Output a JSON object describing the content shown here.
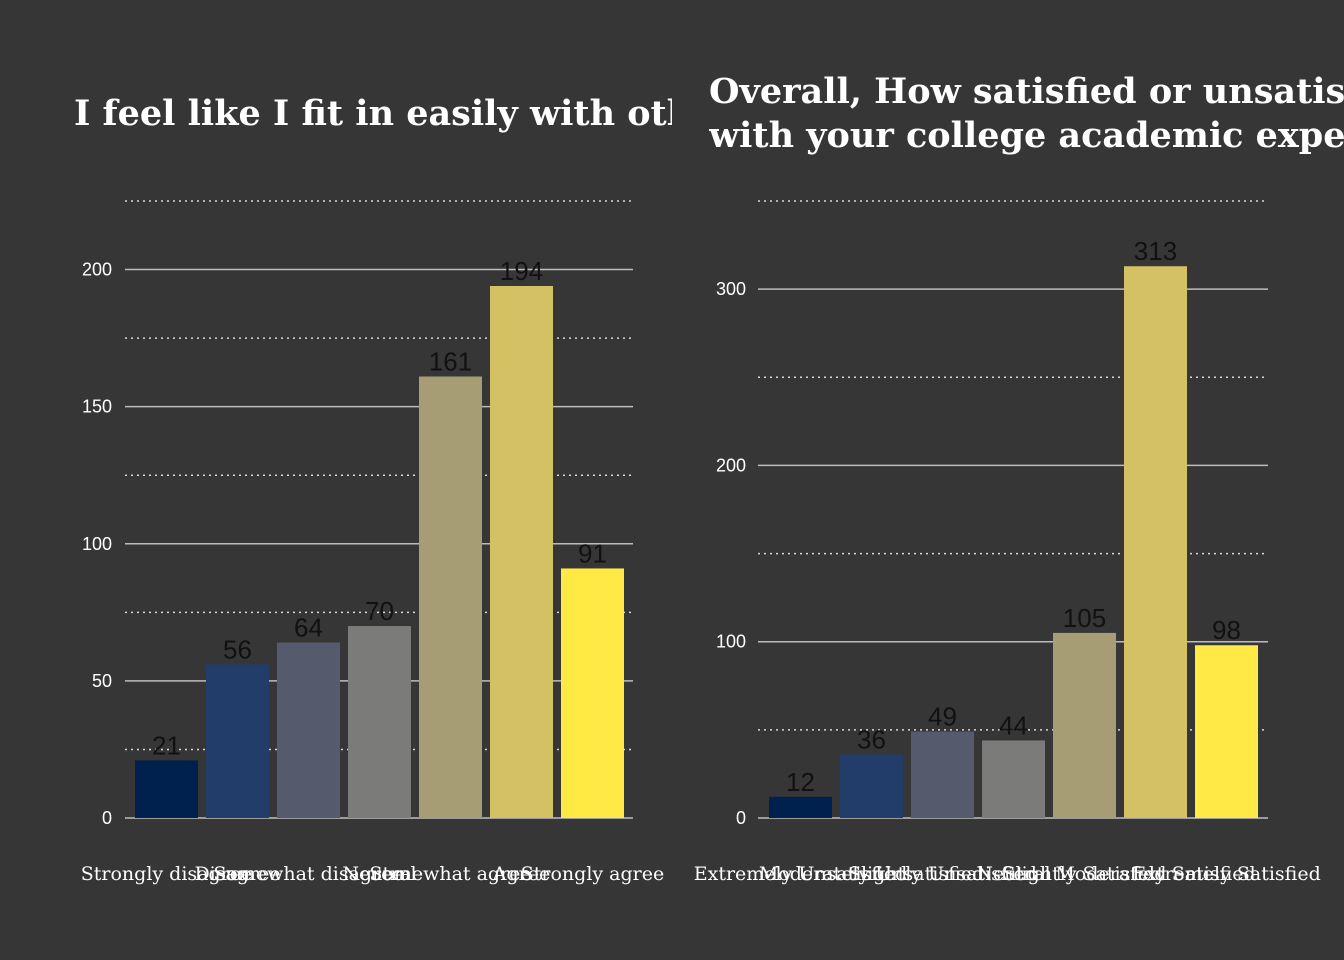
{
  "chart_data": [
    {
      "type": "bar",
      "title": "I feel like I fit in easily with oth",
      "categories": [
        "Strongly disagree",
        "Disagree",
        "Somewhat disagree",
        "Neutral",
        "Somewhat agree",
        "Agree",
        "Strongly agree"
      ],
      "values": [
        21,
        56,
        64,
        70,
        161,
        194,
        91
      ],
      "colors": [
        "#00204D",
        "#233D6B",
        "#555B6C",
        "#7B7B79",
        "#A69D75",
        "#D3C164",
        "#FFE945"
      ],
      "xlabel": "",
      "ylabel": "",
      "ylim": [
        0,
        225
      ],
      "yticks": [
        0,
        50,
        100,
        150,
        200
      ],
      "grid": true,
      "legend": "none"
    },
    {
      "type": "bar",
      "title": "Overall, How satisfied or unsatis\nwith your college academic expe",
      "categories": [
        "Extremely Unsatisfied",
        "Moderately Unsatisfied",
        "Slightly Unsatisfied",
        "Neutral",
        "Slightly Satisfied",
        "Moderately Satisfied",
        "Extremely Satisfied"
      ],
      "values": [
        12,
        36,
        49,
        44,
        105,
        313,
        98
      ],
      "colors": [
        "#00204D",
        "#233D6B",
        "#555B6C",
        "#7B7B79",
        "#A69D75",
        "#D3C164",
        "#FFE945"
      ],
      "xlabel": "",
      "ylabel": "",
      "ylim": [
        0,
        350
      ],
      "yticks": [
        0,
        100,
        200,
        300
      ],
      "grid": true,
      "legend": "none"
    }
  ]
}
